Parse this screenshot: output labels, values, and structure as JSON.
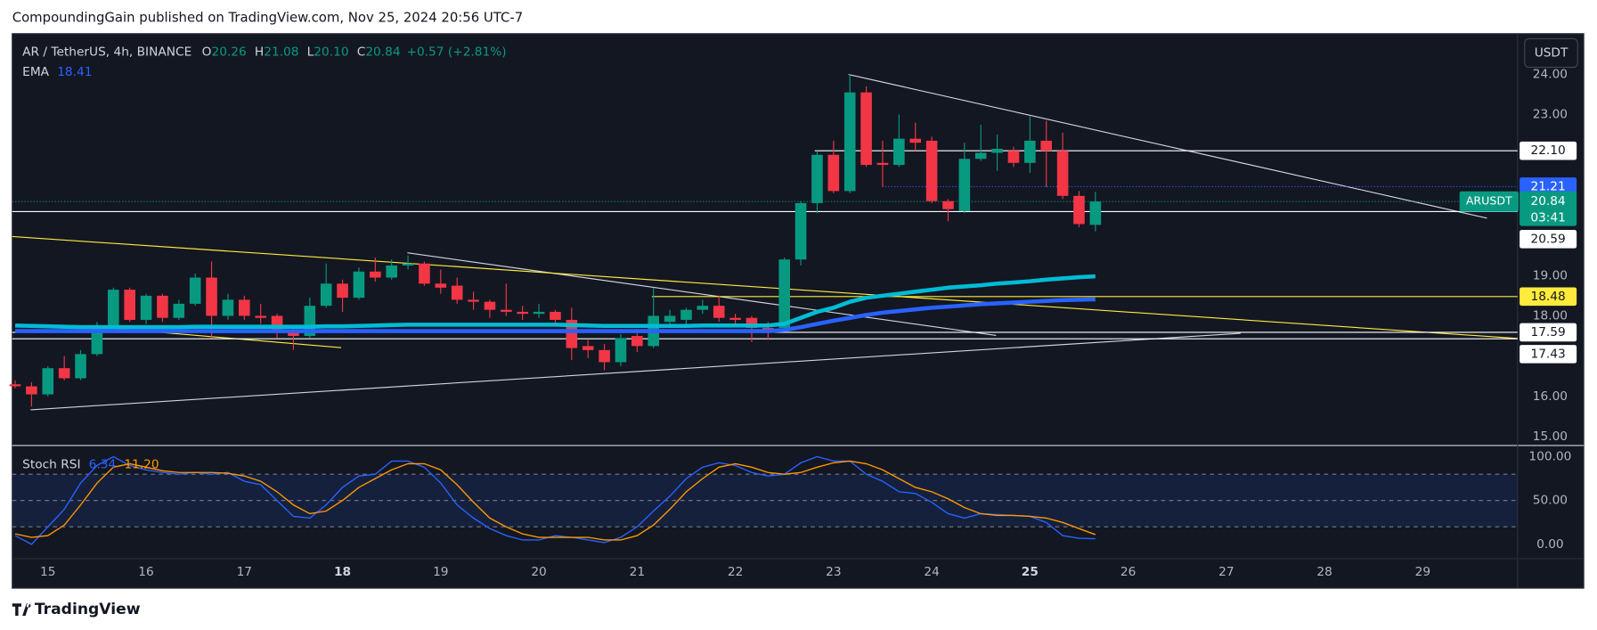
{
  "header": {
    "published": "CompoundingGain published on TradingView.com, Nov 25, 2024 20:56 UTC-7",
    "brand": "TradingView",
    "currency": "USDT"
  },
  "chart_data": [
    {
      "type": "candlestick",
      "legend": {
        "title": "AR / TetherUS, 4h, BINANCE",
        "ohlc": [
          {
            "key": "O",
            "value": "20.26"
          },
          {
            "key": "H",
            "value": "21.08"
          },
          {
            "key": "L",
            "value": "20.10"
          },
          {
            "key": "C",
            "value": "20.84"
          }
        ],
        "change": "+0.57 (+2.81%)"
      },
      "open": [
        16.3,
        16.25,
        16.05,
        16.7,
        16.45,
        17.05,
        17.7,
        18.65,
        17.9,
        18.5,
        17.95,
        18.3,
        18.95,
        18.0,
        18.4,
        18.0,
        18.0,
        17.65,
        17.5,
        18.25,
        18.8,
        18.45,
        19.1,
        18.95,
        19.25,
        19.3,
        18.8,
        18.75,
        18.4,
        18.35,
        18.15,
        18.1,
        18.05,
        18.1,
        17.9,
        17.25,
        17.15,
        16.85,
        17.5,
        17.25,
        17.85,
        17.9,
        18.15,
        18.25,
        17.95,
        17.95,
        17.7,
        17.7,
        19.4,
        20.8,
        22.0,
        21.1,
        23.55,
        21.8,
        21.75,
        22.4,
        22.35,
        20.85,
        20.6,
        21.9,
        22.05,
        22.1,
        21.8,
        22.35,
        22.1,
        20.98,
        20.26
      ],
      "high": [
        16.4,
        16.35,
        16.75,
        17.0,
        17.15,
        17.85,
        18.7,
        18.7,
        18.55,
        18.55,
        18.4,
        19.05,
        19.35,
        18.55,
        18.5,
        18.3,
        18.05,
        17.7,
        18.45,
        19.3,
        18.9,
        19.2,
        19.45,
        19.4,
        19.5,
        19.35,
        19.15,
        18.95,
        18.6,
        18.4,
        18.8,
        18.25,
        18.3,
        18.15,
        18.2,
        17.4,
        17.3,
        17.55,
        17.6,
        18.7,
        18.15,
        18.2,
        18.4,
        18.5,
        18.05,
        18.0,
        17.85,
        19.45,
        20.85,
        22.1,
        22.35,
        24.0,
        23.7,
        22.35,
        23.0,
        22.8,
        22.45,
        20.9,
        22.3,
        22.75,
        22.5,
        22.2,
        22.95,
        22.85,
        22.55,
        21.1,
        21.08
      ],
      "low": [
        16.2,
        15.75,
        16.0,
        16.4,
        16.4,
        17.0,
        17.6,
        17.85,
        17.8,
        17.85,
        17.9,
        18.25,
        17.45,
        17.9,
        17.9,
        17.8,
        17.45,
        17.15,
        17.45,
        18.2,
        18.1,
        18.4,
        18.85,
        18.9,
        19.15,
        18.75,
        18.55,
        18.3,
        18.15,
        17.95,
        18.0,
        17.9,
        17.95,
        17.75,
        16.9,
        16.95,
        16.65,
        16.75,
        17.1,
        17.2,
        17.8,
        17.8,
        18.05,
        17.85,
        17.75,
        17.35,
        17.4,
        17.65,
        19.25,
        20.55,
        21.05,
        21.05,
        21.7,
        21.2,
        21.7,
        22.1,
        20.8,
        20.35,
        20.55,
        21.85,
        21.6,
        21.7,
        21.55,
        21.2,
        20.9,
        20.2,
        20.1
      ],
      "close": [
        16.25,
        16.05,
        16.7,
        16.45,
        17.05,
        17.7,
        18.65,
        17.9,
        18.5,
        17.95,
        18.3,
        18.95,
        18.0,
        18.4,
        18.0,
        17.95,
        17.6,
        17.5,
        18.25,
        18.8,
        18.45,
        19.1,
        18.95,
        19.25,
        19.3,
        18.8,
        18.7,
        18.4,
        18.35,
        18.15,
        18.1,
        18.05,
        18.1,
        17.9,
        17.2,
        17.15,
        16.85,
        17.45,
        17.25,
        18.0,
        18.0,
        18.15,
        18.25,
        17.95,
        17.9,
        17.7,
        17.65,
        19.4,
        20.8,
        22.0,
        21.1,
        23.55,
        21.75,
        21.75,
        22.4,
        22.3,
        20.85,
        20.65,
        21.9,
        22.05,
        22.15,
        21.8,
        22.35,
        22.1,
        20.98,
        20.28,
        20.84
      ],
      "up_color": "#089981",
      "down_color": "#f23645",
      "series": [
        {
          "color": "#00bcd4",
          "values": [
            17.76,
            17.75,
            17.74,
            17.73,
            17.72,
            17.72,
            17.72,
            17.72,
            17.72,
            17.72,
            17.72,
            17.73,
            17.73,
            17.73,
            17.73,
            17.73,
            17.73,
            17.73,
            17.73,
            17.74,
            17.74,
            17.75,
            17.76,
            17.77,
            17.78,
            17.78,
            17.78,
            17.78,
            17.78,
            17.78,
            17.78,
            17.78,
            17.78,
            17.78,
            17.77,
            17.76,
            17.75,
            17.75,
            17.75,
            17.75,
            17.75,
            17.75,
            17.76,
            17.76,
            17.76,
            17.76,
            17.76,
            17.8,
            17.95,
            18.1,
            18.2,
            18.35,
            18.45,
            18.5,
            18.55,
            18.6,
            18.65,
            18.7,
            18.73,
            18.76,
            18.8,
            18.83,
            18.86,
            18.9,
            18.93,
            18.96,
            18.98
          ]
        },
        {
          "name": "EMA",
          "color": "#2962ff",
          "values": [
            17.62,
            17.62,
            17.62,
            17.62,
            17.62,
            17.62,
            17.62,
            17.62,
            17.62,
            17.62,
            17.62,
            17.62,
            17.62,
            17.62,
            17.62,
            17.62,
            17.62,
            17.62,
            17.62,
            17.62,
            17.62,
            17.62,
            17.62,
            17.62,
            17.62,
            17.62,
            17.62,
            17.62,
            17.62,
            17.62,
            17.62,
            17.62,
            17.62,
            17.62,
            17.62,
            17.62,
            17.62,
            17.62,
            17.62,
            17.62,
            17.62,
            17.62,
            17.62,
            17.62,
            17.62,
            17.62,
            17.62,
            17.65,
            17.72,
            17.8,
            17.88,
            17.95,
            18.02,
            18.08,
            18.12,
            18.16,
            18.2,
            18.23,
            18.26,
            18.29,
            18.31,
            18.33,
            18.35,
            18.37,
            18.39,
            18.4,
            18.41
          ]
        }
      ],
      "levels": [
        {
          "value": 22.1,
          "label": "22.10",
          "color": "#ffffff"
        },
        {
          "value": 21.21,
          "label": "21.21",
          "color": "#2962ff"
        },
        {
          "value": 20.59,
          "label": "20.59",
          "color": "#ffffff"
        },
        {
          "value": 18.48,
          "label": "18.48",
          "color": "#ffeb3b"
        },
        {
          "value": 17.59,
          "label": "17.59",
          "color": "#ffffff"
        },
        {
          "value": 17.43,
          "label": "17.43",
          "color": "#ffffff"
        }
      ],
      "last": {
        "symbol": "ARUSDT",
        "value": 20.84,
        "label": "20.84",
        "countdown": "03:41",
        "color": "#089981"
      },
      "ylim": [
        14.78,
        25.01
      ],
      "yticks": [
        {
          "value": 15,
          "label": "15.00"
        },
        {
          "value": 16,
          "label": "16.00"
        },
        {
          "value": 18,
          "label": "18.00"
        },
        {
          "value": 19,
          "label": "19.00"
        },
        {
          "value": 23,
          "label": "23.00"
        },
        {
          "value": 24,
          "label": "24.00"
        }
      ],
      "xticks": [
        15,
        16,
        17,
        18,
        19,
        20,
        21,
        22,
        23,
        24,
        25,
        26,
        27,
        28,
        29
      ]
    },
    {
      "type": "line",
      "title": "Stoch RSI",
      "legend_values": [
        "6.34",
        "11.20"
      ],
      "series": [
        {
          "color": "#2962ff",
          "values": [
            10,
            0,
            20,
            40,
            70,
            90,
            100,
            90,
            85,
            82,
            80,
            82,
            80,
            82,
            72,
            68,
            50,
            32,
            30,
            45,
            65,
            78,
            80,
            95,
            95,
            88,
            70,
            45,
            30,
            18,
            10,
            5,
            5,
            10,
            8,
            5,
            2,
            8,
            20,
            38,
            55,
            75,
            88,
            93,
            90,
            82,
            78,
            80,
            93,
            100,
            95,
            95,
            80,
            72,
            60,
            58,
            48,
            35,
            30,
            35,
            34,
            33,
            32,
            25,
            10,
            7,
            6.34
          ]
        },
        {
          "color": "#ff9800",
          "values": [
            12,
            8,
            10,
            22,
            45,
            70,
            88,
            92,
            88,
            84,
            82,
            82,
            82,
            81,
            78,
            72,
            60,
            45,
            35,
            38,
            50,
            65,
            75,
            85,
            92,
            92,
            85,
            68,
            48,
            30,
            20,
            12,
            8,
            8,
            8,
            8,
            5,
            5,
            10,
            22,
            40,
            60,
            75,
            88,
            92,
            88,
            82,
            80,
            82,
            88,
            93,
            95,
            92,
            85,
            75,
            65,
            60,
            52,
            42,
            35,
            33,
            33,
            32,
            30,
            25,
            18,
            11.2
          ]
        }
      ],
      "levels": [
        20,
        50,
        80
      ],
      "ylim": [
        -16.3,
        112.8
      ],
      "yticks": [
        {
          "value": 0,
          "label": "0.00"
        },
        {
          "value": 50,
          "label": "50.00"
        },
        {
          "value": 100,
          "label": "100.00"
        }
      ]
    }
  ]
}
